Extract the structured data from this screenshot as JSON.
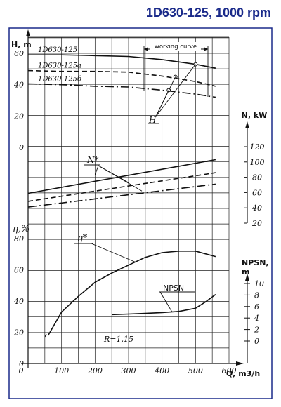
{
  "header": {
    "title": "1D630-125, 1000 rpm"
  },
  "chart_data": {
    "type": "line",
    "title": "1D630-125, 1000 rpm",
    "frame_color": "#1a2a8a",
    "x": {
      "label": "Q, m3/h",
      "range": [
        0,
        600
      ],
      "ticks": [
        "0",
        "100",
        "200",
        "300",
        "400",
        "500",
        "600"
      ]
    },
    "panels": [
      {
        "id": "head",
        "axis_label": "H, m",
        "range": [
          0,
          60
        ],
        "ticks": [
          "0",
          "20",
          "40",
          "60"
        ],
        "annotation": "working curve",
        "callout": "H",
        "series": [
          {
            "name": "1D630-125",
            "style": "solid",
            "x": [
              0,
              100,
              200,
              300,
              400,
              500,
              560
            ],
            "y": [
              59,
              59,
              58.5,
              58,
              56,
              53,
              50.5
            ],
            "marker": [
              500,
              53
            ]
          },
          {
            "name": "1D630-125a",
            "style": "dashed",
            "x": [
              0,
              100,
              200,
              300,
              400,
              500,
              560
            ],
            "y": [
              49,
              48.5,
              48.5,
              48,
              45.5,
              42,
              39
            ],
            "marker": [
              440,
              45
            ]
          },
          {
            "name": "1D630-125б",
            "style": "dashdot",
            "x": [
              0,
              100,
              200,
              300,
              400,
              500,
              560
            ],
            "y": [
              40.5,
              40,
              39,
              38.5,
              36.5,
              34,
              32
            ],
            "marker": [
              420,
              36.5
            ]
          }
        ]
      },
      {
        "id": "power",
        "axis_label": "N, kW",
        "range": [
          20,
          120
        ],
        "ticks": [
          "20",
          "40",
          "60",
          "80",
          "100",
          "120"
        ],
        "callout": "N*",
        "series": [
          {
            "name": "1D630-125",
            "style": "solid",
            "x": [
              0,
              560
            ],
            "y": [
              59,
              103
            ]
          },
          {
            "name": "1D630-125a",
            "style": "dashed",
            "x": [
              0,
              560
            ],
            "y": [
              48.5,
              86
            ]
          },
          {
            "name": "1D630-125б",
            "style": "dashdot",
            "x": [
              0,
              560
            ],
            "y": [
              41,
              71
            ]
          }
        ]
      },
      {
        "id": "efficiency",
        "axis_label": "η,%",
        "range": [
          0,
          80
        ],
        "ticks": [
          "0",
          "20",
          "40",
          "60",
          "80"
        ],
        "callout": "η*",
        "series": [
          {
            "name": "η",
            "style": "solid",
            "x": [
              60,
              100,
              150,
              200,
              250,
              300,
              350,
              400,
              450,
              500,
              560
            ],
            "y": [
              18,
              33,
              43,
              52,
              58,
              63,
              68,
              71,
              72,
              72,
              68.5
            ]
          }
        ]
      },
      {
        "id": "npsh",
        "axis_label": "NPSN, m",
        "range": [
          0,
          10
        ],
        "ticks": [
          "0",
          "2",
          "4",
          "6",
          "8",
          "10"
        ],
        "callout": "NPSN",
        "note": "R=1,15",
        "series": [
          {
            "name": "NPSN",
            "style": "solid",
            "x": [
              250,
              300,
              350,
              400,
              450,
              500,
              530,
              560
            ],
            "y": [
              4.6,
              4.7,
              4.8,
              4.95,
              5.15,
              5.7,
              6.8,
              8.1
            ]
          }
        ]
      }
    ]
  }
}
